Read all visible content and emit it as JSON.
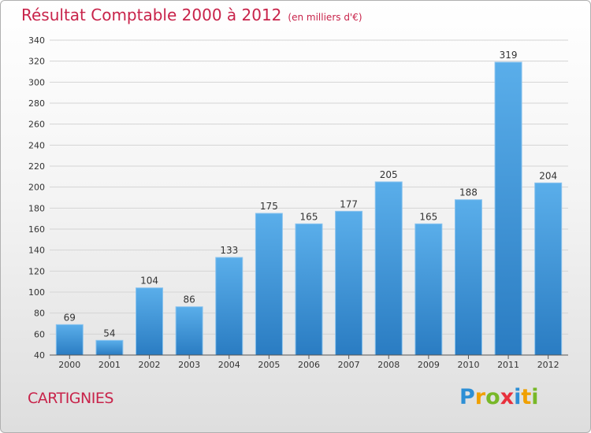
{
  "title": "Résultat Comptable 2000 à 2012",
  "unit": "(en milliers d'€)",
  "town": "CARTIGNIES",
  "logo": {
    "letters": [
      "P",
      "r",
      "o",
      "x",
      "i",
      "t",
      "i"
    ],
    "colors": [
      "#2d8fd5",
      "#f0a000",
      "#78b828",
      "#e8303c",
      "#2d8fd5",
      "#f0a000",
      "#78b828"
    ]
  },
  "chart_data": {
    "type": "bar",
    "categories": [
      "2000",
      "2001",
      "2002",
      "2003",
      "2004",
      "2005",
      "2006",
      "2007",
      "2008",
      "2009",
      "2010",
      "2011",
      "2012"
    ],
    "values": [
      69,
      54,
      104,
      86,
      133,
      175,
      165,
      177,
      205,
      165,
      188,
      319,
      204
    ],
    "ylim": [
      40,
      340
    ],
    "yticks": [
      40,
      60,
      80,
      100,
      120,
      140,
      160,
      180,
      200,
      220,
      240,
      260,
      280,
      300,
      320,
      340
    ],
    "grid": true,
    "bar_color": "#4b9ee0"
  }
}
